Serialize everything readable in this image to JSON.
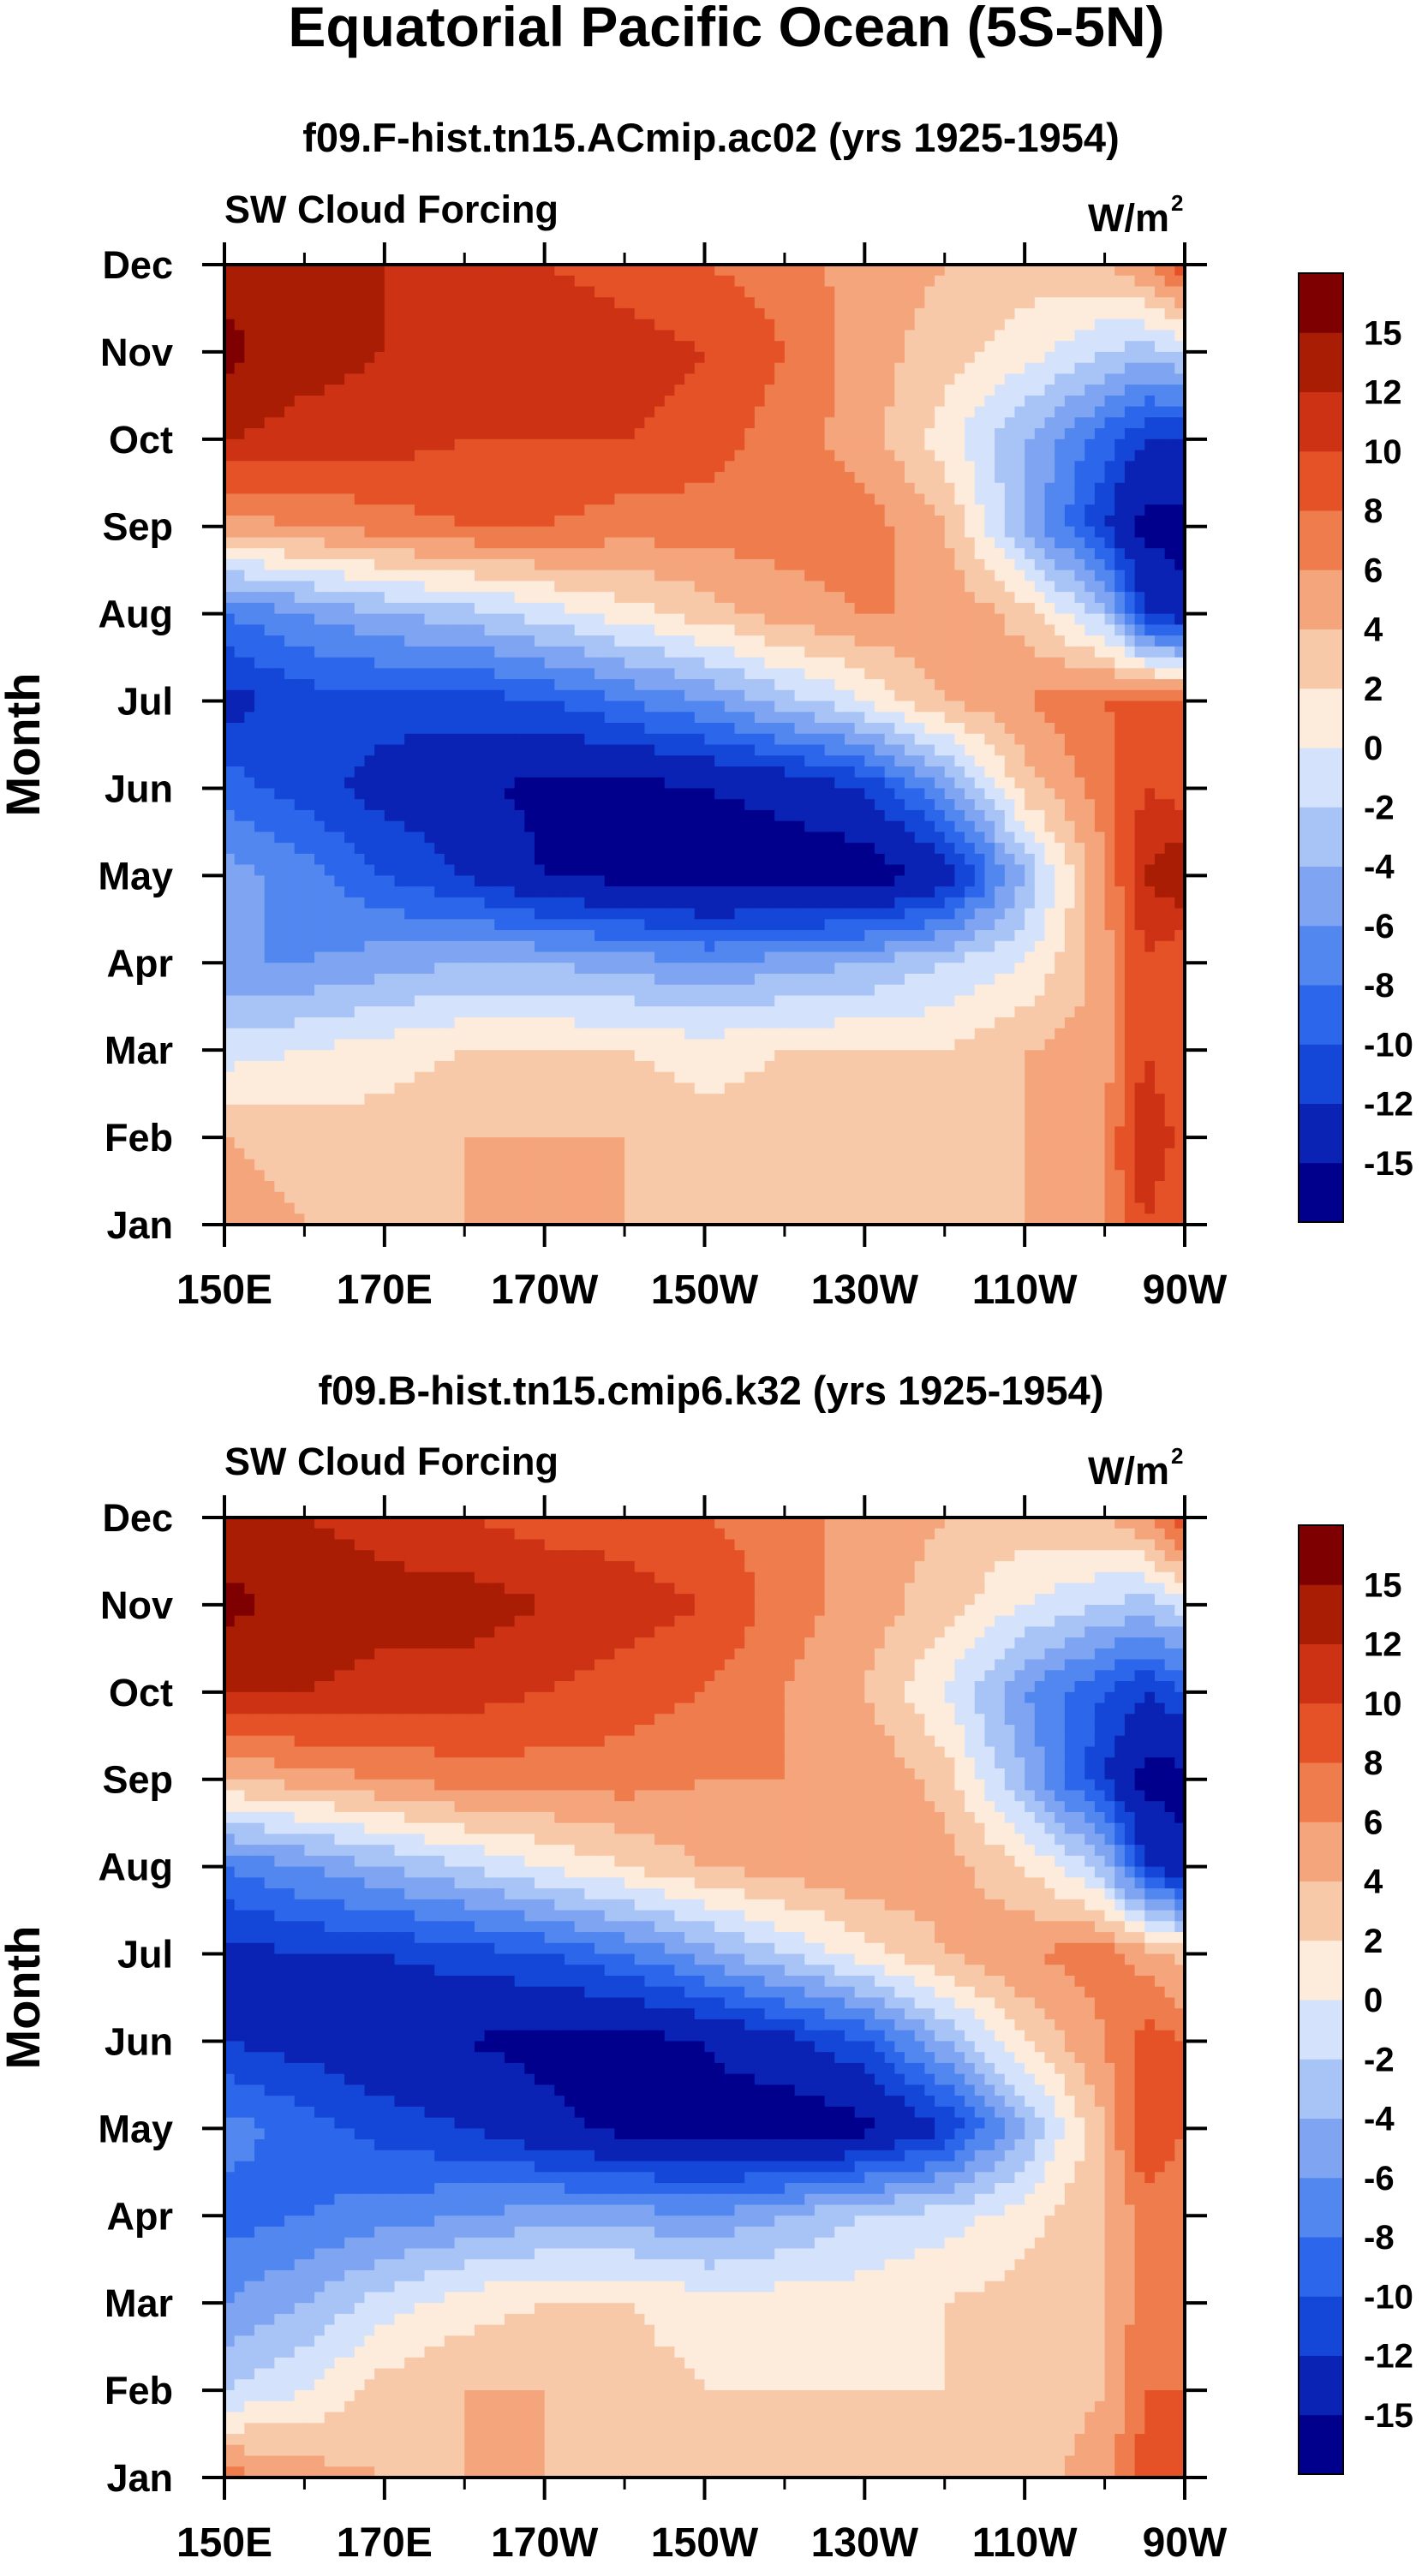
{
  "figure_title": "Equatorial Pacific Ocean (5S-5N)",
  "palette": [
    "#00008c",
    "#0a23b4",
    "#1446d8",
    "#2c66ea",
    "#5287f0",
    "#7ea4f2",
    "#a8c3f6",
    "#d4e3fb",
    "#fdebdc",
    "#f8c9a8",
    "#f5a57c",
    "#ef7c4d",
    "#e55227",
    "#cc3213",
    "#a91d05",
    "#7f0000"
  ],
  "chart_data": [
    {
      "type": "heatmap",
      "title": "f09.F-hist.tn15.ACmip.ac02 (yrs 1925-1954)",
      "field_label": "SW Cloud Forcing",
      "units": "W/m2",
      "xlabel": "",
      "ylabel": "Month",
      "x_ticks": [
        "150E",
        "170E",
        "170W",
        "150W",
        "130W",
        "110W",
        "90W"
      ],
      "x_tick_values": [
        150,
        170,
        190,
        210,
        230,
        250,
        270
      ],
      "y_ticks": [
        "Jan",
        "Feb",
        "Mar",
        "Apr",
        "May",
        "Jun",
        "Jul",
        "Aug",
        "Sep",
        "Oct",
        "Nov",
        "Dec"
      ],
      "xlim": [
        150,
        270
      ],
      "colorbar_levels": [
        "15",
        "12",
        "10",
        "8",
        "6",
        "4",
        "2",
        "0",
        "-2",
        "-4",
        "-6",
        "-8",
        "-10",
        "-12",
        "-15"
      ],
      "x": [
        150,
        160,
        170,
        180,
        190,
        200,
        210,
        220,
        230,
        240,
        250,
        260,
        265,
        270
      ],
      "months": [
        "Jan",
        "Feb",
        "Mar",
        "Apr",
        "May",
        "Jun",
        "Jul",
        "Aug",
        "Sep",
        "Oct",
        "Nov",
        "Dec"
      ],
      "values": [
        [
          5,
          4,
          4,
          4,
          4,
          4,
          4,
          3,
          3,
          3,
          4,
          6,
          10,
          8
        ],
        [
          4,
          3,
          3,
          4,
          4,
          4,
          3,
          3,
          2,
          3,
          4,
          6,
          12,
          9
        ],
        [
          -1,
          0,
          1,
          2,
          2,
          2,
          1,
          2,
          2,
          2,
          4,
          5,
          10,
          8
        ],
        [
          -6,
          -6,
          -5,
          -4,
          -4,
          -5,
          -6,
          -5,
          -4,
          -2,
          0,
          5,
          10,
          8
        ],
        [
          -5,
          -7,
          -10,
          -12,
          -15,
          -16,
          -17,
          -17,
          -17,
          -14,
          -4,
          6,
          12,
          14
        ],
        [
          -9,
          -11,
          -13,
          -14,
          -16,
          -16,
          -15,
          -14,
          -12,
          -6,
          3,
          7,
          10,
          9
        ],
        [
          -13,
          -11,
          -11,
          -11,
          -10,
          -8,
          -6,
          -3,
          0,
          4,
          6,
          8,
          9,
          8
        ],
        [
          -8,
          -6,
          -4,
          -3,
          -1,
          1,
          3,
          5,
          6,
          6,
          3,
          -3,
          -12,
          -14
        ],
        [
          5,
          6,
          7,
          8,
          8,
          7,
          7,
          7,
          7,
          4,
          -4,
          -12,
          -16,
          -16
        ],
        [
          12,
          11,
          11,
          10,
          10,
          10,
          9,
          7,
          5,
          1,
          -4,
          -9,
          -12,
          -12
        ],
        [
          16,
          13,
          12,
          12,
          12,
          11,
          10,
          8,
          5,
          3,
          1,
          -2,
          -3,
          -2
        ],
        [
          14,
          12,
          12,
          11,
          10,
          9,
          8,
          7,
          5,
          4,
          3,
          4,
          6,
          10
        ]
      ]
    },
    {
      "type": "heatmap",
      "title": "f09.B-hist.tn15.cmip6.k32 (yrs 1925-1954)",
      "field_label": "SW Cloud Forcing",
      "units": "W/m2",
      "xlabel": "",
      "ylabel": "Month",
      "x_ticks": [
        "150E",
        "170E",
        "170W",
        "150W",
        "130W",
        "110W",
        "90W"
      ],
      "x_tick_values": [
        150,
        170,
        190,
        210,
        230,
        250,
        270
      ],
      "y_ticks": [
        "Jan",
        "Feb",
        "Mar",
        "Apr",
        "May",
        "Jun",
        "Jul",
        "Aug",
        "Sep",
        "Oct",
        "Nov",
        "Dec"
      ],
      "xlim": [
        150,
        270
      ],
      "colorbar_levels": [
        "15",
        "12",
        "10",
        "8",
        "6",
        "4",
        "2",
        "0",
        "-2",
        "-4",
        "-6",
        "-8",
        "-10",
        "-12",
        "-15"
      ],
      "x": [
        150,
        160,
        170,
        180,
        190,
        200,
        210,
        220,
        230,
        240,
        250,
        260,
        265,
        270
      ],
      "months": [
        "Jan",
        "Feb",
        "Mar",
        "Apr",
        "May",
        "Jun",
        "Jul",
        "Aug",
        "Sep",
        "Oct",
        "Nov",
        "Dec"
      ],
      "values": [
        [
          7,
          5,
          4,
          4,
          4,
          3,
          3,
          3,
          2,
          2,
          3,
          5,
          9,
          8
        ],
        [
          -2,
          0,
          3,
          4,
          4,
          3,
          2,
          2,
          2,
          2,
          3,
          4,
          8,
          8
        ],
        [
          -6,
          -4,
          -1,
          1,
          2,
          2,
          1,
          1,
          1,
          2,
          3,
          4,
          7,
          6
        ],
        [
          -9,
          -8,
          -7,
          -6,
          -5,
          -5,
          -6,
          -4,
          -2,
          -1,
          1,
          4,
          7,
          6
        ],
        [
          -7,
          -9,
          -11,
          -12,
          -14,
          -16,
          -16,
          -17,
          -16,
          -12,
          -4,
          4,
          10,
          8
        ],
        [
          -12,
          -13,
          -14,
          -15,
          -16,
          -16,
          -15,
          -13,
          -10,
          -4,
          2,
          6,
          9,
          8
        ],
        [
          -13,
          -12,
          -12,
          -11,
          -10,
          -8,
          -5,
          -2,
          1,
          4,
          6,
          7,
          5,
          3
        ],
        [
          -8,
          -6,
          -4,
          -2,
          0,
          2,
          4,
          5,
          6,
          5,
          2,
          -3,
          -12,
          -14
        ],
        [
          4,
          5,
          6,
          7,
          7,
          7,
          6,
          6,
          6,
          3,
          -4,
          -12,
          -16,
          -16
        ],
        [
          12,
          12,
          11,
          11,
          10,
          9,
          8,
          6,
          4,
          0,
          -6,
          -10,
          -12,
          -10
        ],
        [
          16,
          14,
          13,
          13,
          12,
          11,
          10,
          7,
          5,
          3,
          0,
          -2,
          -3,
          -1
        ],
        [
          13,
          12,
          11,
          10,
          9,
          9,
          8,
          7,
          5,
          4,
          3,
          4,
          6,
          10
        ]
      ]
    }
  ]
}
